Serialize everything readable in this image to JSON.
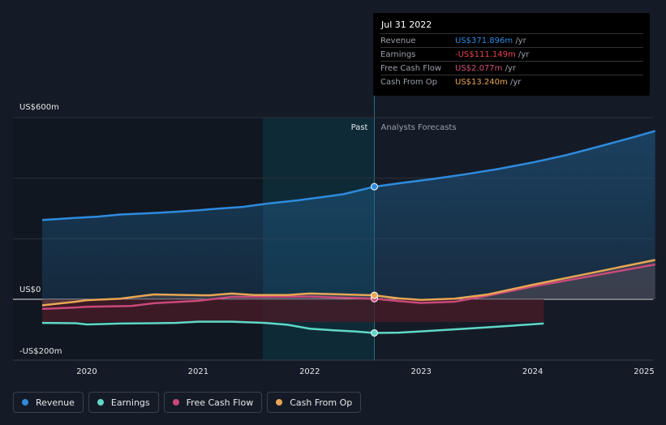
{
  "tooltip": {
    "date": "Jul 31 2022",
    "rows": [
      {
        "label": "Revenue",
        "value": "US$371.896m",
        "unit": "/yr",
        "color": "#2e8bde"
      },
      {
        "label": "Earnings",
        "value": "-US$111.149m",
        "unit": "/yr",
        "color": "#e8464f"
      },
      {
        "label": "Free Cash Flow",
        "value": "US$2.077m",
        "unit": "/yr",
        "color": "#d0507f"
      },
      {
        "label": "Cash From Op",
        "value": "US$13.240m",
        "unit": "/yr",
        "color": "#e8a652"
      }
    ]
  },
  "legend": [
    {
      "label": "Revenue",
      "color": "#2e8bde"
    },
    {
      "label": "Earnings",
      "color": "#5fd8c8"
    },
    {
      "label": "Free Cash Flow",
      "color": "#c8497a"
    },
    {
      "label": "Cash From Op",
      "color": "#e8a652"
    }
  ],
  "chart_data": {
    "type": "line",
    "ylim": [
      -200,
      600
    ],
    "y_tick_labels": [
      {
        "value": 600,
        "label": "US$600m"
      },
      {
        "value": 0,
        "label": "US$0"
      },
      {
        "value": -200,
        "label": "-US$200m"
      }
    ],
    "gridlines": [
      600,
      400,
      200,
      0
    ],
    "x_ticks": [
      2020,
      2021,
      2022,
      2023,
      2024,
      2025
    ],
    "xlim": [
      2019.55,
      2025.1
    ],
    "past_label": "Past",
    "forecast_label": "Analysts Forecasts",
    "past_end": 2022.58,
    "highlight_start": 2021.58,
    "markers_at": 2022.58,
    "series": [
      {
        "name": "Revenue",
        "color": "#2e8bde",
        "x": [
          2019.6,
          2019.9,
          2020.1,
          2020.3,
          2020.6,
          2020.8,
          2021.0,
          2021.2,
          2021.4,
          2021.6,
          2021.9,
          2022.1,
          2022.3,
          2022.58,
          2022.8,
          2023.1,
          2023.4,
          2023.7,
          2024.0,
          2024.3,
          2024.6,
          2024.9,
          2025.1
        ],
        "y": [
          262,
          269,
          273,
          280,
          285,
          289,
          294,
          300,
          305,
          315,
          327,
          337,
          347,
          371.9,
          383,
          397,
          413,
          431,
          452,
          476,
          505,
          535,
          556
        ]
      },
      {
        "name": "Earnings",
        "color": "#5fd8c8",
        "x": [
          2019.6,
          2019.9,
          2020.0,
          2020.3,
          2020.6,
          2020.8,
          2021.0,
          2021.3,
          2021.6,
          2021.8,
          2022.0,
          2022.2,
          2022.4,
          2022.58,
          2022.8,
          2023.1,
          2023.4,
          2023.7,
          2024.1
        ],
        "y": [
          -78,
          -79,
          -83,
          -80,
          -79,
          -78,
          -74,
          -74,
          -78,
          -84,
          -97,
          -102,
          -106,
          -111.1,
          -110,
          -104,
          -97,
          -90,
          -80
        ]
      },
      {
        "name": "Free Cash Flow",
        "color": "#c8497a",
        "x": [
          2019.6,
          2019.9,
          2020.0,
          2020.4,
          2020.6,
          2021.0,
          2021.3,
          2021.6,
          2022.0,
          2022.3,
          2022.58,
          2022.8,
          2023.0,
          2023.3,
          2023.6,
          2024.0,
          2024.5,
          2025.1
        ],
        "y": [
          -32,
          -27,
          -25,
          -22,
          -13,
          -5,
          8,
          8,
          9,
          5,
          2.1,
          -6,
          -12,
          -8,
          12,
          42,
          75,
          115
        ]
      },
      {
        "name": "Cash From Op",
        "color": "#e8a652",
        "x": [
          2019.6,
          2019.9,
          2020.0,
          2020.3,
          2020.6,
          2020.9,
          2021.1,
          2021.3,
          2021.5,
          2021.8,
          2022.0,
          2022.3,
          2022.58,
          2022.8,
          2023.0,
          2023.3,
          2023.6,
          2024.0,
          2024.5,
          2025.1
        ],
        "y": [
          -20,
          -8,
          -3,
          2,
          16,
          14,
          13,
          19,
          14,
          14,
          19,
          16,
          13.2,
          3,
          -2,
          2,
          16,
          48,
          85,
          130
        ]
      }
    ]
  }
}
